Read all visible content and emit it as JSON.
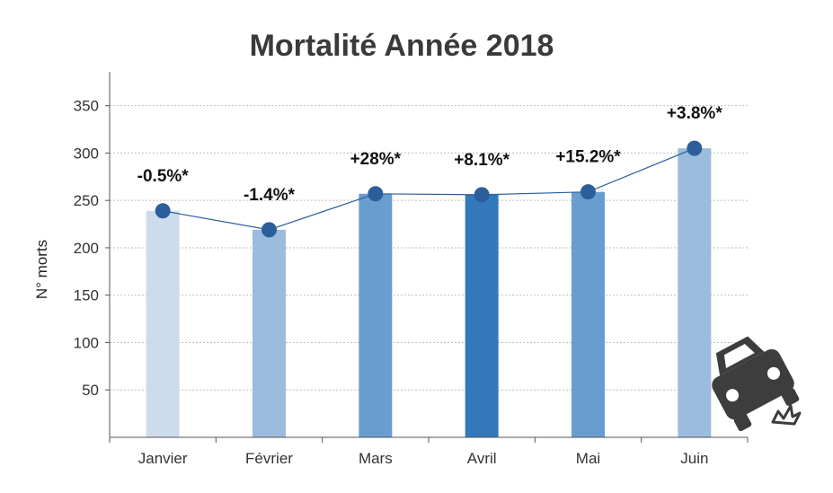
{
  "chart_data": {
    "type": "bar",
    "title": "Mortalité Année 2018",
    "xlabel": "",
    "ylabel": "N° morts",
    "categories": [
      "Janvier",
      "Février",
      "Mars",
      "Avril",
      "Mai",
      "Juin"
    ],
    "values": [
      239,
      219,
      257,
      256,
      259,
      305
    ],
    "data_labels": [
      "-0.5%*",
      "-1.4%*",
      "+28%*",
      "+8.1%*",
      "+15.2%*",
      "+3.8%*"
    ],
    "bar_colors": [
      "#cddcec",
      "#9bbcdd",
      "#6a9dcf",
      "#3478bc",
      "#6a9dcf",
      "#9bbcdd"
    ],
    "line_color": "#2c5f9a",
    "marker_color": "#2c5f9a",
    "yticks": [
      50,
      100,
      150,
      200,
      250,
      300,
      350
    ],
    "ylim": [
      0,
      380
    ],
    "grid": true,
    "grid_style": "dotted",
    "legend": "none",
    "icon": "car-crash-icon"
  }
}
